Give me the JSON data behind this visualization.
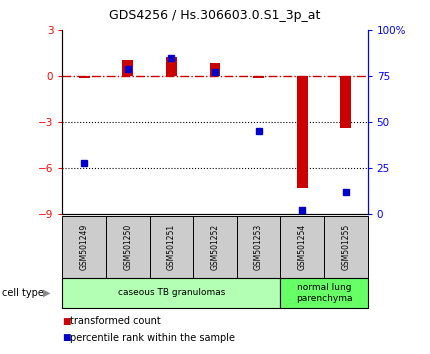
{
  "title": "GDS4256 / Hs.306603.0.S1_3p_at",
  "samples": [
    "GSM501249",
    "GSM501250",
    "GSM501251",
    "GSM501252",
    "GSM501253",
    "GSM501254",
    "GSM501255"
  ],
  "transformed_counts": [
    -0.15,
    1.05,
    1.25,
    0.85,
    -0.15,
    -7.3,
    -3.4
  ],
  "percentile_ranks": [
    28,
    79,
    85,
    77,
    45,
    2,
    12
  ],
  "ylim_left": [
    -9,
    3
  ],
  "ylim_right": [
    0,
    100
  ],
  "left_ticks": [
    3,
    0,
    -3,
    -6,
    -9
  ],
  "right_ticks": [
    100,
    75,
    50,
    25,
    0
  ],
  "right_tick_labels": [
    "100%",
    "75",
    "50",
    "25",
    "0"
  ],
  "group_ranges": [
    [
      0,
      4
    ],
    [
      5,
      6
    ]
  ],
  "group_labels": [
    "caseous TB granulomas",
    "normal lung\nparenchyma"
  ],
  "group_colors": [
    "#b3ffb3",
    "#66ff66"
  ],
  "bar_color": "#cc0000",
  "dot_color": "#0000cc",
  "hline_color": "#cc0000",
  "dotted_lines": [
    -3,
    -6
  ],
  "legend_items": [
    {
      "label": "transformed count",
      "color": "#cc0000"
    },
    {
      "label": "percentile rank within the sample",
      "color": "#0000cc"
    }
  ],
  "cell_type_label": "cell type",
  "sample_box_color": "#cccccc",
  "bar_width": 0.25
}
